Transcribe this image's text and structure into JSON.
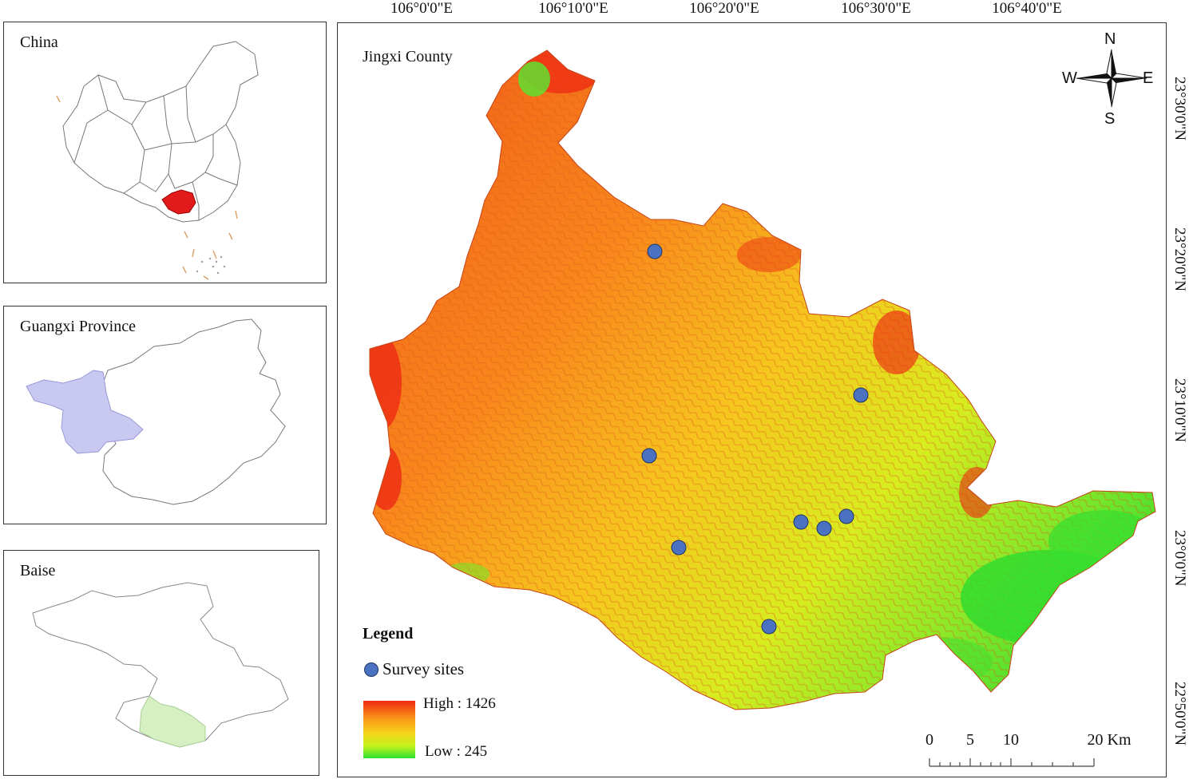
{
  "insets": {
    "china_label": "China",
    "guangxi_label": "Guangxi Province",
    "baise_label": "Baise",
    "china_highlight_color": "#e31a1c",
    "guangxi_highlight_color": "#c9c8f0",
    "baise_highlight_color": "#d6f0c4"
  },
  "map": {
    "title": "Jingxi County",
    "lon_ticks": [
      "106°0'0\"E",
      "106°10'0\"E",
      "106°20'0\"E",
      "106°30'0\"E",
      "106°40'0\"E"
    ],
    "lat_ticks": [
      "23°30'0\"N",
      "23°20'0\"N",
      "23°10'0\"N",
      "23°0'0\"N",
      "22°50'0\"N"
    ],
    "legend": {
      "title": "Legend",
      "sites_label": "Survey sites",
      "site_color": "#4a72c0",
      "high_label": "High : 1426",
      "low_label": "Low : 245",
      "high_color": "#ef2a12",
      "low_color": "#2de032"
    },
    "compass": {
      "n": "N",
      "s": "S",
      "e": "E",
      "w": "W"
    },
    "scale_bar": {
      "labels": [
        "0",
        "5",
        "10",
        "20 Km"
      ]
    }
  }
}
